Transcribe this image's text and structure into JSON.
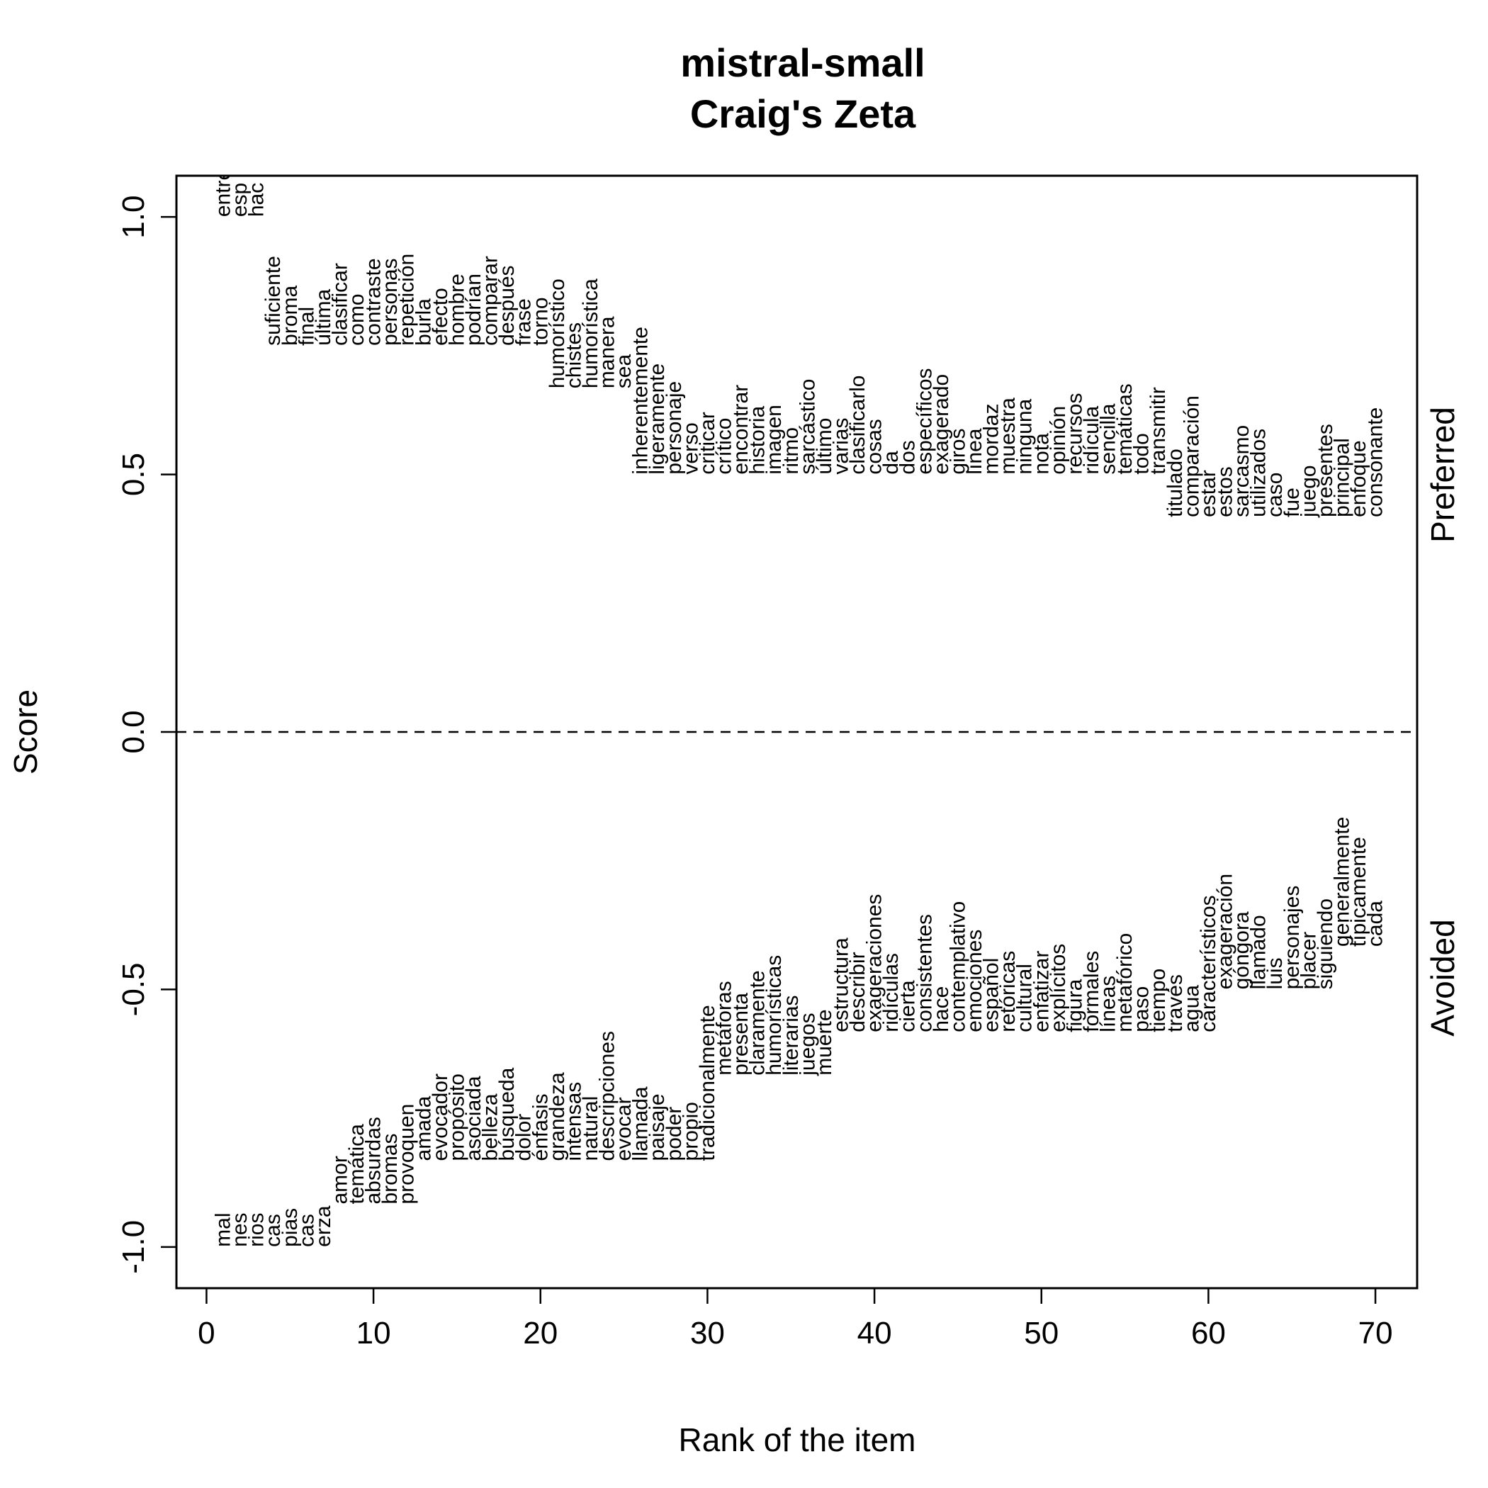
{
  "chart_data": {
    "type": "text-scatter",
    "title_line1": "mistral-small",
    "title_line2": "Craig's Zeta",
    "xlabel": "Rank of the item",
    "ylabel": "Score",
    "right_label_top": "Preferred",
    "right_label_bottom": "Avoided",
    "xlim": [
      -1.8,
      72.5
    ],
    "ylim": [
      -1.08,
      1.08
    ],
    "x_ticks": [
      0,
      10,
      20,
      30,
      40,
      50,
      60,
      70
    ],
    "y_ticks": [
      -1.0,
      -0.5,
      0.0,
      0.5,
      1.0
    ],
    "y_tick_labels": [
      "-1.0",
      "-0.5",
      "0.0",
      "0.5",
      "1.0"
    ],
    "reference_line": 0,
    "preferred": [
      {
        "x": 1,
        "y": 1.0,
        "label": "entre"
      },
      {
        "x": 2,
        "y": 1.0,
        "label": "esp"
      },
      {
        "x": 3,
        "y": 1.0,
        "label": "hac"
      },
      {
        "x": 4,
        "y": 0.75,
        "label": "suficiente"
      },
      {
        "x": 5,
        "y": 0.75,
        "label": "broma"
      },
      {
        "x": 6,
        "y": 0.75,
        "label": "final"
      },
      {
        "x": 7,
        "y": 0.75,
        "label": "última"
      },
      {
        "x": 8,
        "y": 0.75,
        "label": "clasificar"
      },
      {
        "x": 9,
        "y": 0.75,
        "label": "como"
      },
      {
        "x": 10,
        "y": 0.75,
        "label": "contraste"
      },
      {
        "x": 11,
        "y": 0.75,
        "label": "personas"
      },
      {
        "x": 12,
        "y": 0.75,
        "label": "repetición"
      },
      {
        "x": 13,
        "y": 0.75,
        "label": "burla"
      },
      {
        "x": 14,
        "y": 0.75,
        "label": "efecto"
      },
      {
        "x": 15,
        "y": 0.75,
        "label": "hombre"
      },
      {
        "x": 16,
        "y": 0.75,
        "label": "podrían"
      },
      {
        "x": 17,
        "y": 0.75,
        "label": "comparar"
      },
      {
        "x": 18,
        "y": 0.75,
        "label": "después"
      },
      {
        "x": 19,
        "y": 0.75,
        "label": "frase"
      },
      {
        "x": 20,
        "y": 0.75,
        "label": "torno"
      },
      {
        "x": 21,
        "y": 0.667,
        "label": "humorístico"
      },
      {
        "x": 22,
        "y": 0.667,
        "label": "chistes"
      },
      {
        "x": 23,
        "y": 0.667,
        "label": "humorística"
      },
      {
        "x": 24,
        "y": 0.667,
        "label": "manera"
      },
      {
        "x": 25,
        "y": 0.667,
        "label": "sea"
      },
      {
        "x": 26,
        "y": 0.5,
        "label": "inherentemente"
      },
      {
        "x": 27,
        "y": 0.5,
        "label": "ligeramente"
      },
      {
        "x": 28,
        "y": 0.5,
        "label": "personaje"
      },
      {
        "x": 29,
        "y": 0.5,
        "label": "verso"
      },
      {
        "x": 30,
        "y": 0.5,
        "label": "criticar"
      },
      {
        "x": 31,
        "y": 0.5,
        "label": "crítico"
      },
      {
        "x": 32,
        "y": 0.5,
        "label": "encontrar"
      },
      {
        "x": 33,
        "y": 0.5,
        "label": "historia"
      },
      {
        "x": 34,
        "y": 0.5,
        "label": "imagen"
      },
      {
        "x": 35,
        "y": 0.5,
        "label": "ritmo"
      },
      {
        "x": 36,
        "y": 0.5,
        "label": "sarcástico"
      },
      {
        "x": 37,
        "y": 0.5,
        "label": "último"
      },
      {
        "x": 38,
        "y": 0.5,
        "label": "varias"
      },
      {
        "x": 39,
        "y": 0.5,
        "label": "clasificarlo"
      },
      {
        "x": 40,
        "y": 0.5,
        "label": "cosas"
      },
      {
        "x": 41,
        "y": 0.5,
        "label": "da"
      },
      {
        "x": 42,
        "y": 0.5,
        "label": "dos"
      },
      {
        "x": 43,
        "y": 0.5,
        "label": "específicos"
      },
      {
        "x": 44,
        "y": 0.5,
        "label": "exagerado"
      },
      {
        "x": 45,
        "y": 0.5,
        "label": "giros"
      },
      {
        "x": 46,
        "y": 0.5,
        "label": "línea"
      },
      {
        "x": 47,
        "y": 0.5,
        "label": "mordaz"
      },
      {
        "x": 48,
        "y": 0.5,
        "label": "muestra"
      },
      {
        "x": 49,
        "y": 0.5,
        "label": "ninguna"
      },
      {
        "x": 50,
        "y": 0.5,
        "label": "nota"
      },
      {
        "x": 51,
        "y": 0.5,
        "label": "opinión"
      },
      {
        "x": 52,
        "y": 0.5,
        "label": "recursos"
      },
      {
        "x": 53,
        "y": 0.5,
        "label": "ridícula"
      },
      {
        "x": 54,
        "y": 0.5,
        "label": "sencilla"
      },
      {
        "x": 55,
        "y": 0.5,
        "label": "temáticas"
      },
      {
        "x": 56,
        "y": 0.5,
        "label": "todo"
      },
      {
        "x": 57,
        "y": 0.5,
        "label": "transmitir"
      },
      {
        "x": 58,
        "y": 0.417,
        "label": "titulado"
      },
      {
        "x": 59,
        "y": 0.417,
        "label": "comparación"
      },
      {
        "x": 60,
        "y": 0.417,
        "label": "estar"
      },
      {
        "x": 61,
        "y": 0.417,
        "label": "estos"
      },
      {
        "x": 62,
        "y": 0.417,
        "label": "sarcasmo"
      },
      {
        "x": 63,
        "y": 0.417,
        "label": "utilizados"
      },
      {
        "x": 64,
        "y": 0.417,
        "label": "caso"
      },
      {
        "x": 65,
        "y": 0.417,
        "label": "fue"
      },
      {
        "x": 66,
        "y": 0.417,
        "label": "juego"
      },
      {
        "x": 67,
        "y": 0.417,
        "label": "presentes"
      },
      {
        "x": 68,
        "y": 0.417,
        "label": "principal"
      },
      {
        "x": 69,
        "y": 0.417,
        "label": "enfoque"
      },
      {
        "x": 70,
        "y": 0.417,
        "label": "consonante"
      }
    ],
    "avoided": [
      {
        "x": 1,
        "y": -1.0,
        "label": "mal"
      },
      {
        "x": 2,
        "y": -1.0,
        "label": "nes"
      },
      {
        "x": 3,
        "y": -1.0,
        "label": "rios"
      },
      {
        "x": 4,
        "y": -1.0,
        "label": "cas"
      },
      {
        "x": 5,
        "y": -1.0,
        "label": "pias"
      },
      {
        "x": 6,
        "y": -1.0,
        "label": "cas"
      },
      {
        "x": 7,
        "y": -1.0,
        "label": "erza"
      },
      {
        "x": 8,
        "y": -0.917,
        "label": "amor"
      },
      {
        "x": 9,
        "y": -0.917,
        "label": "temática"
      },
      {
        "x": 10,
        "y": -0.917,
        "label": "absurdas"
      },
      {
        "x": 11,
        "y": -0.917,
        "label": "bromas"
      },
      {
        "x": 12,
        "y": -0.917,
        "label": "provoquen"
      },
      {
        "x": 13,
        "y": -0.833,
        "label": "amada"
      },
      {
        "x": 14,
        "y": -0.833,
        "label": "evocador"
      },
      {
        "x": 15,
        "y": -0.833,
        "label": "propósito"
      },
      {
        "x": 16,
        "y": -0.833,
        "label": "asociada"
      },
      {
        "x": 17,
        "y": -0.833,
        "label": "belleza"
      },
      {
        "x": 18,
        "y": -0.833,
        "label": "búsqueda"
      },
      {
        "x": 19,
        "y": -0.833,
        "label": "dolor"
      },
      {
        "x": 20,
        "y": -0.833,
        "label": "énfasis"
      },
      {
        "x": 21,
        "y": -0.833,
        "label": "grandeza"
      },
      {
        "x": 22,
        "y": -0.833,
        "label": "intensas"
      },
      {
        "x": 23,
        "y": -0.833,
        "label": "natural"
      },
      {
        "x": 24,
        "y": -0.833,
        "label": "descripciones"
      },
      {
        "x": 25,
        "y": -0.833,
        "label": "evocar"
      },
      {
        "x": 26,
        "y": -0.833,
        "label": "llamada"
      },
      {
        "x": 27,
        "y": -0.833,
        "label": "paisaje"
      },
      {
        "x": 28,
        "y": -0.833,
        "label": "poder"
      },
      {
        "x": 29,
        "y": -0.833,
        "label": "propio"
      },
      {
        "x": 30,
        "y": -0.833,
        "label": "tradicionalmente"
      },
      {
        "x": 31,
        "y": -0.667,
        "label": "metáforas"
      },
      {
        "x": 32,
        "y": -0.667,
        "label": "presenta"
      },
      {
        "x": 33,
        "y": -0.667,
        "label": "claramente"
      },
      {
        "x": 34,
        "y": -0.667,
        "label": "humorísticas"
      },
      {
        "x": 35,
        "y": -0.667,
        "label": "literarias"
      },
      {
        "x": 36,
        "y": -0.667,
        "label": "juegos"
      },
      {
        "x": 37,
        "y": -0.667,
        "label": "muerte"
      },
      {
        "x": 38,
        "y": -0.583,
        "label": "estructura"
      },
      {
        "x": 39,
        "y": -0.583,
        "label": "describir"
      },
      {
        "x": 40,
        "y": -0.583,
        "label": "exageraciones"
      },
      {
        "x": 41,
        "y": -0.583,
        "label": "ridículas"
      },
      {
        "x": 42,
        "y": -0.583,
        "label": "cierta"
      },
      {
        "x": 43,
        "y": -0.583,
        "label": "consistentes"
      },
      {
        "x": 44,
        "y": -0.583,
        "label": "hace"
      },
      {
        "x": 45,
        "y": -0.583,
        "label": "contemplativo"
      },
      {
        "x": 46,
        "y": -0.583,
        "label": "emociones"
      },
      {
        "x": 47,
        "y": -0.583,
        "label": "español"
      },
      {
        "x": 48,
        "y": -0.583,
        "label": "retóricas"
      },
      {
        "x": 49,
        "y": -0.583,
        "label": "cultural"
      },
      {
        "x": 50,
        "y": -0.583,
        "label": "enfatizar"
      },
      {
        "x": 51,
        "y": -0.583,
        "label": "explícitos"
      },
      {
        "x": 52,
        "y": -0.583,
        "label": "figura"
      },
      {
        "x": 53,
        "y": -0.583,
        "label": "formales"
      },
      {
        "x": 54,
        "y": -0.583,
        "label": "líneas"
      },
      {
        "x": 55,
        "y": -0.583,
        "label": "metafórico"
      },
      {
        "x": 56,
        "y": -0.583,
        "label": "paso"
      },
      {
        "x": 57,
        "y": -0.583,
        "label": "tiempo"
      },
      {
        "x": 58,
        "y": -0.583,
        "label": "través"
      },
      {
        "x": 59,
        "y": -0.583,
        "label": "agua"
      },
      {
        "x": 60,
        "y": -0.583,
        "label": "característicos"
      },
      {
        "x": 61,
        "y": -0.5,
        "label": "exageración"
      },
      {
        "x": 62,
        "y": -0.5,
        "label": "góngora"
      },
      {
        "x": 63,
        "y": -0.5,
        "label": "llamado"
      },
      {
        "x": 64,
        "y": -0.5,
        "label": "luis"
      },
      {
        "x": 65,
        "y": -0.5,
        "label": "personajes"
      },
      {
        "x": 66,
        "y": -0.5,
        "label": "placer"
      },
      {
        "x": 67,
        "y": -0.5,
        "label": "siguiendo"
      },
      {
        "x": 68,
        "y": -0.417,
        "label": "generalmente"
      },
      {
        "x": 69,
        "y": -0.417,
        "label": "típicamente"
      },
      {
        "x": 70,
        "y": -0.417,
        "label": "cada"
      }
    ],
    "colors": {
      "text": "#000000",
      "background": "#ffffff",
      "frame": "#000000"
    }
  }
}
